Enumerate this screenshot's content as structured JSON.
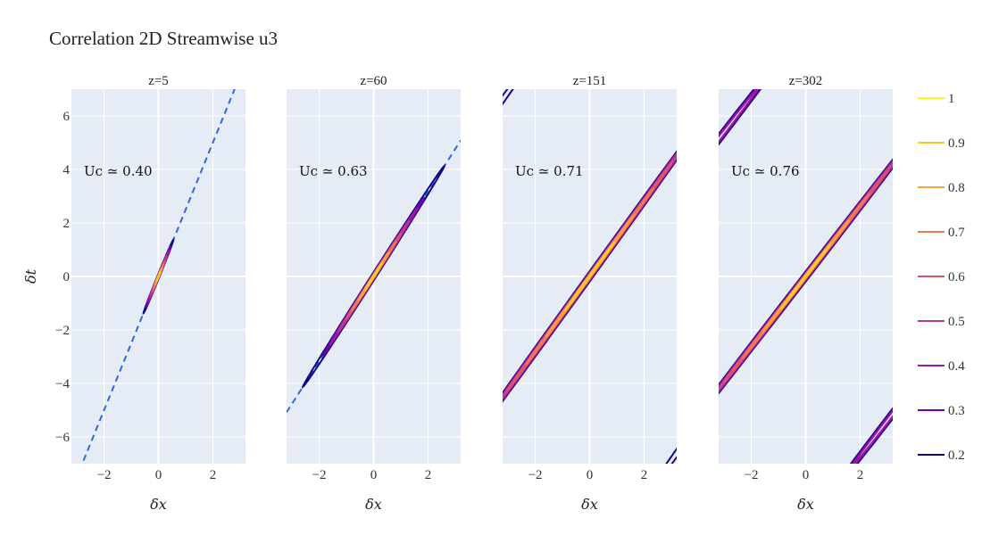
{
  "title": "Correlation 2D Streamwise u3",
  "colors": {
    "plot_bg": "#e5ecf6",
    "grid": "#ffffff",
    "fit_line": "#3366dd"
  },
  "legend": [
    {
      "label": "1",
      "color": "#f0f921"
    },
    {
      "label": "0.9",
      "color": "#fdca26"
    },
    {
      "label": "0.8",
      "color": "#fb9f3a"
    },
    {
      "label": "0.7",
      "color": "#ed7953"
    },
    {
      "label": "0.6",
      "color": "#d8576b"
    },
    {
      "label": "0.5",
      "color": "#bd3786"
    },
    {
      "label": "0.4",
      "color": "#9c179e"
    },
    {
      "label": "0.3",
      "color": "#7201a8"
    },
    {
      "label": "0.2",
      "color": "#0d0887"
    }
  ],
  "chart_data": [
    {
      "type": "contour",
      "title": "z=5",
      "xlabel": "δx",
      "ylabel": "δt",
      "xlim": [
        -3.2,
        3.2
      ],
      "ylim": [
        -7,
        7
      ],
      "xticks": [
        "−2",
        "0",
        "2"
      ],
      "yticks": [
        "−6",
        "−4",
        "−2",
        "0",
        "2",
        "4",
        "6"
      ],
      "annotation": "Uc ≃ 0.40",
      "uc": 0.4,
      "contours": [
        {
          "level": 0.2,
          "cx": 0,
          "ct": 0,
          "dx_half": 0.55,
          "half_width": 0.09
        },
        {
          "level": 0.3,
          "cx": 0,
          "ct": 0,
          "dx_half": 0.45,
          "half_width": 0.07
        },
        {
          "level": 0.4,
          "cx": 0,
          "ct": 0,
          "dx_half": 0.38,
          "half_width": 0.06
        },
        {
          "level": 0.5,
          "cx": 0,
          "ct": 0,
          "dx_half": 0.3,
          "half_width": 0.05
        },
        {
          "level": 0.6,
          "cx": 0,
          "ct": 0,
          "dx_half": 0.24,
          "half_width": 0.04
        },
        {
          "level": 0.7,
          "cx": 0,
          "ct": 0,
          "dx_half": 0.18,
          "half_width": 0.035
        },
        {
          "level": 0.8,
          "cx": 0,
          "ct": 0,
          "dx_half": 0.12,
          "half_width": 0.03
        },
        {
          "level": 0.9,
          "cx": 0,
          "ct": 0,
          "dx_half": 0.07,
          "half_width": 0.02
        }
      ]
    },
    {
      "type": "contour",
      "title": "z=60",
      "xlabel": "δx",
      "ylabel": "",
      "xlim": [
        -3.2,
        3.2
      ],
      "ylim": [
        -7,
        7
      ],
      "xticks": [
        "−2",
        "0",
        "2"
      ],
      "yticks": [],
      "annotation": "Uc ≃ 0.63",
      "uc": 0.63,
      "contours": [
        {
          "level": 0.2,
          "cx": 0,
          "ct": 0,
          "dx_half": 2.6,
          "half_width": 0.16
        },
        {
          "level": 0.3,
          "cx": 0,
          "ct": 0,
          "dx_half": 1.85,
          "half_width": 0.12
        },
        {
          "level": 0.4,
          "cx": 0,
          "ct": 0,
          "dx_half": 1.6,
          "half_width": 0.1
        },
        {
          "level": 0.5,
          "cx": 0,
          "ct": 0,
          "dx_half": 1.3,
          "half_width": 0.09
        },
        {
          "level": 0.6,
          "cx": 0,
          "ct": 0,
          "dx_half": 1.0,
          "half_width": 0.07
        },
        {
          "level": 0.7,
          "cx": 0,
          "ct": 0,
          "dx_half": 0.8,
          "half_width": 0.06
        },
        {
          "level": 0.8,
          "cx": 0,
          "ct": 0,
          "dx_half": 0.55,
          "half_width": 0.05
        },
        {
          "level": 0.9,
          "cx": 0,
          "ct": 0,
          "dx_half": 0.3,
          "half_width": 0.035
        }
      ]
    },
    {
      "type": "contour",
      "title": "z=151",
      "xlabel": "δx",
      "ylabel": "",
      "xlim": [
        -3.2,
        3.2
      ],
      "ylim": [
        -7,
        7
      ],
      "xticks": [
        "−2",
        "0",
        "2"
      ],
      "yticks": [],
      "annotation": "Uc ≃ 0.71",
      "uc": 0.71,
      "contours": [
        {
          "level": 0.2,
          "cx": 0,
          "ct": 0,
          "dx_half": 5.5,
          "half_width": 0.2
        },
        {
          "level": 0.3,
          "cx": 0,
          "ct": 0,
          "dx_half": 5.0,
          "half_width": 0.16
        },
        {
          "level": 0.4,
          "cx": 0,
          "ct": 0,
          "dx_half": 4.5,
          "half_width": 0.13
        },
        {
          "level": 0.5,
          "cx": 0,
          "ct": 0,
          "dx_half": 3.8,
          "half_width": 0.11
        },
        {
          "level": 0.6,
          "cx": 0,
          "ct": 0,
          "dx_half": 3.0,
          "half_width": 0.09
        },
        {
          "level": 0.7,
          "cx": 0,
          "ct": 0,
          "dx_half": 2.3,
          "half_width": 0.07
        },
        {
          "level": 0.8,
          "cx": 0,
          "ct": 0,
          "dx_half": 1.6,
          "half_width": 0.055
        },
        {
          "level": 0.9,
          "cx": 0,
          "ct": 0,
          "dx_half": 0.9,
          "half_width": 0.04
        },
        {
          "level": 0.2,
          "cx": -4.2,
          "ct": 5.2,
          "dx_half": 2.2,
          "half_width": 0.18
        },
        {
          "level": 0.2,
          "cx": 4.2,
          "ct": -5.2,
          "dx_half": 2.2,
          "half_width": 0.18
        }
      ]
    },
    {
      "type": "contour",
      "title": "z=302",
      "xlabel": "δx",
      "ylabel": "",
      "xlim": [
        -3.2,
        3.2
      ],
      "ylim": [
        -7,
        7
      ],
      "xticks": [
        "−2",
        "0",
        "2"
      ],
      "yticks": [],
      "annotation": "Uc ≃ 0.76",
      "uc": 0.76,
      "contours": [
        {
          "level": 0.2,
          "cx": 0,
          "ct": 0,
          "dx_half": 5.5,
          "half_width": 0.2
        },
        {
          "level": 0.3,
          "cx": 0,
          "ct": 0,
          "dx_half": 5.0,
          "half_width": 0.16
        },
        {
          "level": 0.4,
          "cx": 0,
          "ct": 0,
          "dx_half": 4.5,
          "half_width": 0.13
        },
        {
          "level": 0.5,
          "cx": 0,
          "ct": 0,
          "dx_half": 3.8,
          "half_width": 0.11
        },
        {
          "level": 0.6,
          "cx": 0,
          "ct": 0,
          "dx_half": 3.0,
          "half_width": 0.09
        },
        {
          "level": 0.7,
          "cx": 0,
          "ct": 0,
          "dx_half": 2.3,
          "half_width": 0.07
        },
        {
          "level": 0.8,
          "cx": 0,
          "ct": 0,
          "dx_half": 1.6,
          "half_width": 0.055
        },
        {
          "level": 0.9,
          "cx": 0,
          "ct": 0,
          "dx_half": 0.9,
          "half_width": 0.04
        },
        {
          "level": 0.2,
          "cx": -3.3,
          "ct": 5.0,
          "dx_half": 2.6,
          "half_width": 0.2
        },
        {
          "level": 0.3,
          "cx": -3.3,
          "ct": 5.0,
          "dx_half": 2.0,
          "half_width": 0.14
        },
        {
          "level": 0.4,
          "cx": -3.3,
          "ct": 5.0,
          "dx_half": 1.6,
          "half_width": 0.1
        },
        {
          "level": 0.2,
          "cx": 3.3,
          "ct": -5.0,
          "dx_half": 2.6,
          "half_width": 0.2
        },
        {
          "level": 0.3,
          "cx": 3.3,
          "ct": -5.0,
          "dx_half": 2.0,
          "half_width": 0.14
        },
        {
          "level": 0.4,
          "cx": 3.3,
          "ct": -5.0,
          "dx_half": 1.6,
          "half_width": 0.1
        }
      ]
    }
  ]
}
